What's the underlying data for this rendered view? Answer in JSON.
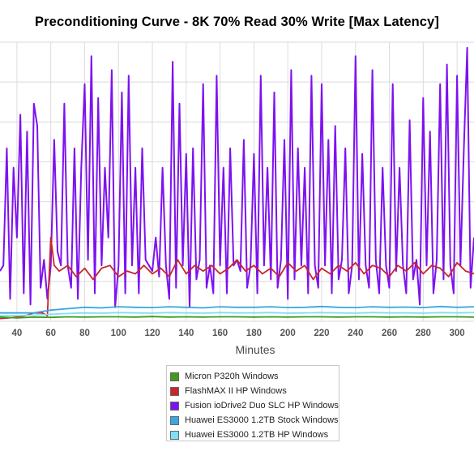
{
  "chart_data": {
    "type": "line",
    "title": "Preconditioning Curve - 8K 70% Read 30% Write [Max Latency]",
    "xlabel": "Minutes",
    "ylabel": "",
    "xlim": [
      30,
      310
    ],
    "ylim": [
      0,
      1
    ],
    "x_ticks": [
      "40",
      "60",
      "80",
      "100",
      "120",
      "140",
      "160",
      "180",
      "200",
      "220",
      "240",
      "260",
      "280",
      "300"
    ],
    "grid": true,
    "legend_position": "bottom",
    "series": [
      {
        "name": "Micron P320h Windows",
        "color": "#3f9b1c",
        "x": [
          30,
          40,
          50,
          60,
          70,
          80,
          90,
          100,
          110,
          120,
          130,
          140,
          150,
          160,
          170,
          180,
          190,
          200,
          210,
          220,
          230,
          240,
          250,
          260,
          270,
          280,
          290,
          300,
          310
        ],
        "values": [
          0.015,
          0.012,
          0.015,
          0.014,
          0.016,
          0.015,
          0.016,
          0.016,
          0.015,
          0.017,
          0.015,
          0.016,
          0.015,
          0.016,
          0.016,
          0.015,
          0.016,
          0.015,
          0.016,
          0.016,
          0.015,
          0.016,
          0.016,
          0.015,
          0.016,
          0.015,
          0.016,
          0.016,
          0.015
        ]
      },
      {
        "name": "FlashMAX II HP Windows",
        "color": "#c8262a",
        "x": [
          30,
          35,
          40,
          45,
          50,
          55,
          58,
          60,
          62,
          65,
          70,
          75,
          80,
          85,
          90,
          95,
          100,
          105,
          110,
          115,
          120,
          125,
          130,
          135,
          140,
          145,
          150,
          155,
          160,
          165,
          170,
          175,
          180,
          185,
          190,
          195,
          200,
          205,
          210,
          215,
          220,
          225,
          230,
          235,
          240,
          245,
          250,
          255,
          260,
          265,
          270,
          275,
          280,
          285,
          290,
          295,
          300,
          305,
          310
        ],
        "values": [
          0.01,
          0.012,
          0.015,
          0.02,
          0.03,
          0.03,
          0.02,
          0.3,
          0.2,
          0.18,
          0.2,
          0.16,
          0.19,
          0.15,
          0.19,
          0.2,
          0.16,
          0.18,
          0.17,
          0.2,
          0.17,
          0.19,
          0.16,
          0.22,
          0.17,
          0.2,
          0.18,
          0.2,
          0.17,
          0.19,
          0.22,
          0.18,
          0.2,
          0.17,
          0.19,
          0.16,
          0.21,
          0.18,
          0.2,
          0.15,
          0.19,
          0.17,
          0.2,
          0.18,
          0.21,
          0.17,
          0.2,
          0.19,
          0.16,
          0.2,
          0.18,
          0.21,
          0.17,
          0.2,
          0.19,
          0.16,
          0.21,
          0.18,
          0.17
        ]
      },
      {
        "name": "Fusion ioDrive2 Duo SLC HP Windows",
        "color": "#7d12f0",
        "x": [
          30,
          32,
          34,
          36,
          38,
          40,
          42,
          44,
          46,
          48,
          50,
          52,
          54,
          56,
          58,
          60,
          62,
          64,
          66,
          68,
          70,
          72,
          74,
          76,
          78,
          80,
          82,
          84,
          86,
          88,
          90,
          92,
          94,
          96,
          98,
          100,
          102,
          104,
          106,
          108,
          110,
          112,
          114,
          116,
          118,
          120,
          122,
          124,
          126,
          128,
          130,
          132,
          134,
          136,
          138,
          140,
          142,
          144,
          146,
          148,
          150,
          152,
          154,
          156,
          158,
          160,
          162,
          164,
          166,
          168,
          170,
          172,
          174,
          176,
          178,
          180,
          182,
          184,
          186,
          188,
          190,
          192,
          194,
          196,
          198,
          200,
          202,
          204,
          206,
          208,
          210,
          212,
          214,
          216,
          218,
          220,
          222,
          224,
          226,
          228,
          230,
          232,
          234,
          236,
          238,
          240,
          242,
          244,
          246,
          248,
          250,
          252,
          254,
          256,
          258,
          260,
          262,
          264,
          266,
          268,
          270,
          272,
          274,
          276,
          278,
          280,
          282,
          284,
          286,
          288,
          290,
          292,
          294,
          296,
          298,
          300,
          302,
          304,
          306,
          308,
          310
        ],
        "values": [
          0.18,
          0.2,
          0.62,
          0.08,
          0.55,
          0.3,
          0.74,
          0.1,
          0.68,
          0.06,
          0.78,
          0.7,
          0.12,
          0.22,
          0.08,
          0.2,
          0.65,
          0.25,
          0.2,
          0.78,
          0.2,
          0.12,
          0.62,
          0.08,
          0.55,
          0.85,
          0.22,
          0.95,
          0.1,
          0.8,
          0.2,
          0.55,
          0.3,
          0.9,
          0.05,
          0.2,
          0.82,
          0.1,
          0.88,
          0.2,
          0.55,
          0.1,
          0.62,
          0.22,
          0.2,
          0.18,
          0.3,
          0.16,
          0.55,
          0.2,
          0.08,
          0.93,
          0.12,
          0.78,
          0.2,
          0.6,
          0.05,
          0.62,
          0.15,
          0.22,
          0.85,
          0.12,
          0.2,
          0.1,
          0.88,
          0.2,
          0.55,
          0.1,
          0.62,
          0.2,
          0.22,
          0.18,
          0.65,
          0.12,
          0.2,
          0.6,
          0.1,
          0.88,
          0.2,
          0.55,
          0.15,
          0.82,
          0.12,
          0.22,
          0.65,
          0.08,
          0.9,
          0.15,
          0.62,
          0.2,
          0.55,
          0.1,
          0.88,
          0.2,
          0.12,
          0.85,
          0.2,
          0.65,
          0.1,
          0.7,
          0.15,
          0.22,
          0.62,
          0.1,
          0.2,
          0.95,
          0.15,
          0.6,
          0.2,
          0.12,
          0.9,
          0.22,
          0.1,
          0.55,
          0.2,
          0.12,
          0.85,
          0.18,
          0.55,
          0.2,
          0.1,
          0.72,
          0.15,
          0.22,
          0.06,
          0.8,
          0.2,
          0.68,
          0.1,
          0.22,
          0.85,
          0.15,
          0.92,
          0.2,
          0.1,
          0.88,
          0.2,
          0.62,
          0.98,
          0.12,
          0.3
        ]
      },
      {
        "name": "Huawei ES3000 1.2TB Stock Windows",
        "color": "#3aa7e0",
        "x": [
          30,
          40,
          50,
          60,
          70,
          80,
          90,
          100,
          110,
          120,
          130,
          140,
          150,
          160,
          170,
          180,
          190,
          200,
          210,
          220,
          230,
          240,
          250,
          260,
          270,
          280,
          290,
          300,
          310
        ],
        "values": [
          0.03,
          0.03,
          0.03,
          0.04,
          0.045,
          0.05,
          0.048,
          0.052,
          0.05,
          0.049,
          0.052,
          0.05,
          0.048,
          0.052,
          0.05,
          0.05,
          0.052,
          0.049,
          0.05,
          0.053,
          0.05,
          0.049,
          0.052,
          0.05,
          0.051,
          0.049,
          0.053,
          0.05,
          0.052
        ]
      },
      {
        "name": "Huawei ES3000 1.2TB HP Windows",
        "color": "#7fe0f5",
        "x": [
          30,
          40,
          50,
          60,
          70,
          80,
          90,
          100,
          110,
          120,
          130,
          140,
          150,
          160,
          170,
          180,
          190,
          200,
          210,
          220,
          230,
          240,
          250,
          260,
          270,
          280,
          290,
          300,
          310
        ],
        "values": [
          0.02,
          0.02,
          0.022,
          0.025,
          0.028,
          0.03,
          0.029,
          0.031,
          0.03,
          0.029,
          0.031,
          0.03,
          0.029,
          0.031,
          0.03,
          0.03,
          0.031,
          0.029,
          0.03,
          0.031,
          0.03,
          0.029,
          0.031,
          0.03,
          0.03,
          0.029,
          0.031,
          0.03,
          0.031
        ]
      }
    ]
  }
}
